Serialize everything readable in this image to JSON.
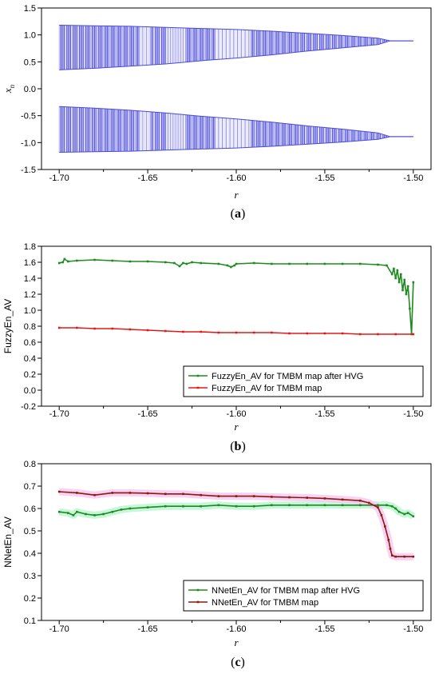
{
  "chart_data": [
    {
      "type": "scatter",
      "title": "",
      "xlabel": "r",
      "ylabel": "x",
      "ylabel_sub": "n",
      "caption_letter": "a",
      "xlim": [
        -1.71,
        -1.49
      ],
      "ylim": [
        -1.5,
        1.5
      ],
      "xticks": [
        -1.7,
        -1.65,
        -1.6,
        -1.55,
        -1.5
      ],
      "xtick_labels": [
        "-1.70",
        "-1.65",
        "-1.60",
        "-1.55",
        "-1.50"
      ],
      "yticks": [
        -1.5,
        -1.0,
        -0.5,
        0.0,
        0.5,
        1.0,
        1.5
      ],
      "ytick_labels": [
        "-1.5",
        "-1.0",
        "-0.5",
        "0.0",
        "0.5",
        "1.0",
        "1.5"
      ],
      "color": "#4a4ad8",
      "upper_band": {
        "r": [
          -1.7,
          -1.68,
          -1.66,
          -1.64,
          -1.62,
          -1.6,
          -1.58,
          -1.56,
          -1.54,
          -1.52,
          -1.513,
          -1.5
        ],
        "top": [
          1.18,
          1.17,
          1.16,
          1.14,
          1.12,
          1.1,
          1.07,
          1.03,
          0.99,
          0.94,
          0.89,
          0.89
        ],
        "bottom": [
          0.35,
          0.38,
          0.42,
          0.46,
          0.52,
          0.57,
          0.63,
          0.7,
          0.76,
          0.82,
          0.89,
          0.89
        ]
      },
      "lower_band": {
        "r": [
          -1.7,
          -1.68,
          -1.66,
          -1.64,
          -1.62,
          -1.6,
          -1.58,
          -1.56,
          -1.54,
          -1.52,
          -1.513,
          -1.5
        ],
        "top": [
          -0.33,
          -0.36,
          -0.4,
          -0.45,
          -0.51,
          -0.56,
          -0.62,
          -0.69,
          -0.75,
          -0.82,
          -0.89,
          -0.89
        ],
        "bottom": [
          -1.18,
          -1.17,
          -1.16,
          -1.14,
          -1.12,
          -1.1,
          -1.07,
          -1.03,
          -0.99,
          -0.94,
          -0.89,
          -0.89
        ]
      }
    },
    {
      "type": "line",
      "title": "",
      "xlabel": "r",
      "ylabel": "FuzzyEn_AV",
      "caption_letter": "b",
      "xlim": [
        -1.71,
        -1.49
      ],
      "ylim": [
        -0.2,
        1.8
      ],
      "xticks": [
        -1.7,
        -1.65,
        -1.6,
        -1.55,
        -1.5
      ],
      "xtick_labels": [
        "-1.70",
        "-1.65",
        "-1.60",
        "-1.55",
        "-1.50"
      ],
      "yticks": [
        -0.2,
        0.0,
        0.2,
        0.4,
        0.6,
        0.8,
        1.0,
        1.2,
        1.4,
        1.6,
        1.8
      ],
      "ytick_labels": [
        "-0.2",
        "0.0",
        "0.2",
        "0.4",
        "0.6",
        "0.8",
        "1.0",
        "1.2",
        "1.4",
        "1.6",
        "1.8"
      ],
      "legend_position": "bottom-right",
      "series": [
        {
          "name": "FuzzyEn_AV for TMBM map after HVG",
          "color": "#1f8a1f",
          "x": [
            -1.7,
            -1.698,
            -1.697,
            -1.695,
            -1.69,
            -1.68,
            -1.67,
            -1.66,
            -1.65,
            -1.64,
            -1.635,
            -1.632,
            -1.63,
            -1.628,
            -1.625,
            -1.62,
            -1.61,
            -1.605,
            -1.603,
            -1.601,
            -1.6,
            -1.59,
            -1.58,
            -1.57,
            -1.56,
            -1.55,
            -1.54,
            -1.53,
            -1.52,
            -1.515,
            -1.512,
            -1.511,
            -1.51,
            -1.509,
            -1.508,
            -1.507,
            -1.506,
            -1.505,
            -1.504,
            -1.503,
            -1.502,
            -1.501,
            -1.5
          ],
          "y": [
            1.59,
            1.6,
            1.64,
            1.61,
            1.62,
            1.63,
            1.62,
            1.61,
            1.61,
            1.6,
            1.59,
            1.55,
            1.59,
            1.58,
            1.6,
            1.59,
            1.58,
            1.56,
            1.54,
            1.56,
            1.58,
            1.59,
            1.58,
            1.58,
            1.58,
            1.58,
            1.58,
            1.58,
            1.57,
            1.56,
            1.45,
            1.52,
            1.4,
            1.5,
            1.35,
            1.45,
            1.25,
            1.38,
            1.2,
            1.3,
            1.02,
            0.7,
            1.35
          ]
        },
        {
          "name": "FuzzyEn_AV for TMBM map",
          "color": "#e01a1a",
          "x": [
            -1.7,
            -1.69,
            -1.68,
            -1.67,
            -1.66,
            -1.65,
            -1.64,
            -1.63,
            -1.62,
            -1.61,
            -1.6,
            -1.59,
            -1.58,
            -1.57,
            -1.56,
            -1.55,
            -1.54,
            -1.53,
            -1.52,
            -1.51,
            -1.5
          ],
          "y": [
            0.78,
            0.78,
            0.77,
            0.77,
            0.76,
            0.75,
            0.74,
            0.73,
            0.73,
            0.72,
            0.72,
            0.72,
            0.72,
            0.71,
            0.71,
            0.71,
            0.71,
            0.7,
            0.7,
            0.7,
            0.7
          ]
        }
      ]
    },
    {
      "type": "line",
      "title": "",
      "xlabel": "r",
      "ylabel": "NNetEn_AV",
      "caption_letter": "c",
      "xlim": [
        -1.71,
        -1.49
      ],
      "ylim": [
        0.1,
        0.8
      ],
      "xticks": [
        -1.7,
        -1.65,
        -1.6,
        -1.55,
        -1.5
      ],
      "xtick_labels": [
        "-1.70",
        "-1.65",
        "-1.60",
        "-1.55",
        "-1.50"
      ],
      "yticks": [
        0.1,
        0.2,
        0.3,
        0.4,
        0.5,
        0.6,
        0.7,
        0.8
      ],
      "ytick_labels": [
        "0.1",
        "0.2",
        "0.3",
        "0.4",
        "0.5",
        "0.6",
        "0.7",
        "0.8"
      ],
      "legend_position": "bottom-right",
      "series": [
        {
          "name": "NNetEn_AV for TMBM map after HVG",
          "color": "#1f8a1f",
          "band_color": "#b8f5cf",
          "x": [
            -1.7,
            -1.695,
            -1.692,
            -1.69,
            -1.685,
            -1.68,
            -1.675,
            -1.67,
            -1.665,
            -1.66,
            -1.65,
            -1.64,
            -1.63,
            -1.62,
            -1.61,
            -1.6,
            -1.59,
            -1.58,
            -1.57,
            -1.56,
            -1.55,
            -1.54,
            -1.53,
            -1.52,
            -1.515,
            -1.512,
            -1.51,
            -1.508,
            -1.505,
            -1.503,
            -1.5
          ],
          "y": [
            0.585,
            0.58,
            0.57,
            0.585,
            0.575,
            0.57,
            0.575,
            0.585,
            0.595,
            0.6,
            0.605,
            0.61,
            0.61,
            0.61,
            0.615,
            0.61,
            0.61,
            0.615,
            0.615,
            0.615,
            0.615,
            0.615,
            0.615,
            0.615,
            0.615,
            0.61,
            0.6,
            0.585,
            0.575,
            0.58,
            0.565
          ]
        },
        {
          "name": "NNetEn_AV for TMBM map",
          "color": "#8b1a0a",
          "band_color": "#f7c6f2",
          "x": [
            -1.7,
            -1.69,
            -1.68,
            -1.67,
            -1.66,
            -1.65,
            -1.64,
            -1.63,
            -1.62,
            -1.61,
            -1.6,
            -1.59,
            -1.58,
            -1.57,
            -1.56,
            -1.55,
            -1.54,
            -1.53,
            -1.525,
            -1.52,
            -1.518,
            -1.516,
            -1.514,
            -1.513,
            -1.512,
            -1.51,
            -1.505,
            -1.5
          ],
          "y": [
            0.675,
            0.67,
            0.66,
            0.67,
            0.67,
            0.668,
            0.665,
            0.665,
            0.66,
            0.655,
            0.655,
            0.655,
            0.652,
            0.65,
            0.648,
            0.645,
            0.64,
            0.635,
            0.625,
            0.605,
            0.57,
            0.52,
            0.46,
            0.42,
            0.39,
            0.385,
            0.385,
            0.385
          ]
        }
      ]
    }
  ]
}
